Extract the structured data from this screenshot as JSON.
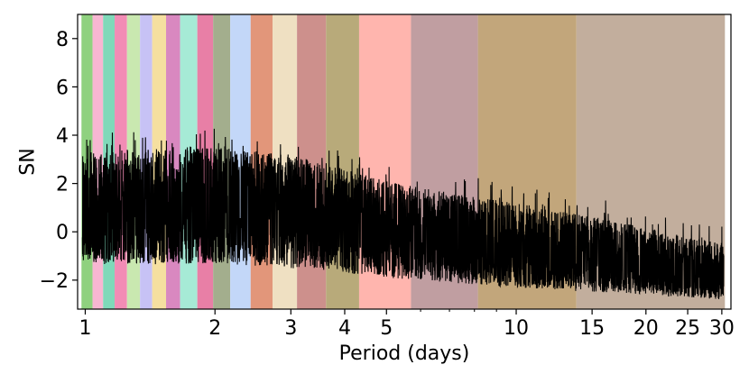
{
  "chart_data": {
    "type": "line",
    "title": "",
    "xlabel": "Period (days)",
    "ylabel": "SN",
    "xscale": "log",
    "xlim": [
      0.96,
      31.5
    ],
    "ylim": [
      -3.2,
      9.0
    ],
    "grid": false,
    "legend": "none",
    "x_ticks": [
      1,
      2,
      3,
      4,
      5,
      10,
      15,
      20,
      25,
      30
    ],
    "x_tick_labels": [
      "1",
      "2",
      "3",
      "4",
      "5",
      "10",
      "15",
      "20",
      "25",
      "30"
    ],
    "y_ticks": [
      -2,
      0,
      2,
      4,
      6,
      8
    ],
    "y_tick_labels": [
      "−2",
      "0",
      "2",
      "4",
      "6",
      "8"
    ],
    "line_color": "#000000",
    "signal_envelope": {
      "period": [
        1,
        2,
        3,
        4,
        5,
        7,
        10,
        15,
        20,
        30
      ],
      "center": [
        0.9,
        0.9,
        0.8,
        0.4,
        0.0,
        -0.4,
        -0.8,
        -1.2,
        -1.5,
        -1.8
      ],
      "upper": [
        3.3,
        3.5,
        3.2,
        2.6,
        2.1,
        1.6,
        1.2,
        0.6,
        0.2,
        -0.5
      ],
      "lower": [
        -1.4,
        -1.3,
        -1.5,
        -1.7,
        -1.9,
        -2.1,
        -2.3,
        -2.5,
        -2.6,
        -2.8
      ]
    },
    "bands": [
      {
        "start": 0.98,
        "end": 1.04,
        "color": "#8fd17f"
      },
      {
        "start": 1.04,
        "end": 1.1,
        "color": "#f7b6d2"
      },
      {
        "start": 1.1,
        "end": 1.17,
        "color": "#7fd9b9"
      },
      {
        "start": 1.17,
        "end": 1.25,
        "color": "#f28cb5"
      },
      {
        "start": 1.25,
        "end": 1.34,
        "color": "#c9e8b0"
      },
      {
        "start": 1.34,
        "end": 1.43,
        "color": "#c7c2f5"
      },
      {
        "start": 1.43,
        "end": 1.54,
        "color": "#f5dfa0"
      },
      {
        "start": 1.54,
        "end": 1.66,
        "color": "#d988c0"
      },
      {
        "start": 1.66,
        "end": 1.82,
        "color": "#a6ead6"
      },
      {
        "start": 1.82,
        "end": 1.98,
        "color": "#e87fa6"
      },
      {
        "start": 1.98,
        "end": 2.17,
        "color": "#a3ae8d"
      },
      {
        "start": 2.17,
        "end": 2.42,
        "color": "#c3d7f8"
      },
      {
        "start": 2.42,
        "end": 2.72,
        "color": "#e2967a"
      },
      {
        "start": 2.72,
        "end": 3.1,
        "color": "#efe0c2"
      },
      {
        "start": 3.1,
        "end": 3.62,
        "color": "#cd908c"
      },
      {
        "start": 3.62,
        "end": 4.32,
        "color": "#b8aa7a"
      },
      {
        "start": 4.32,
        "end": 5.7,
        "color": "#ffb5ae"
      },
      {
        "start": 5.7,
        "end": 8.15,
        "color": "#c09ea1"
      },
      {
        "start": 8.15,
        "end": 13.8,
        "color": "#c2a67b"
      },
      {
        "start": 13.8,
        "end": 30.5,
        "color": "#c2ae9d"
      }
    ]
  }
}
